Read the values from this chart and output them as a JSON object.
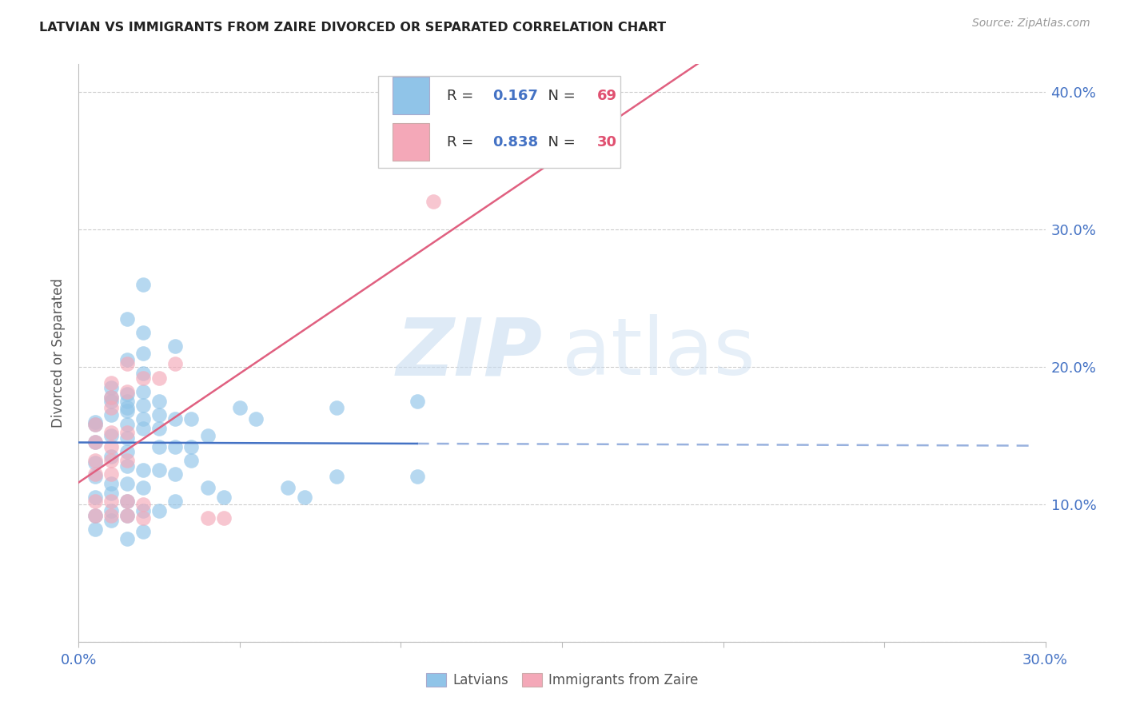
{
  "title": "LATVIAN VS IMMIGRANTS FROM ZAIRE DIVORCED OR SEPARATED CORRELATION CHART",
  "source": "Source: ZipAtlas.com",
  "ylabel": "Divorced or Separated",
  "xlim": [
    0.0,
    0.3
  ],
  "ylim": [
    0.0,
    0.42
  ],
  "latvian_R": 0.167,
  "latvian_N": 69,
  "zaire_R": 0.838,
  "zaire_N": 30,
  "blue_color": "#90C4E8",
  "pink_color": "#F4A8B8",
  "blue_line_color": "#4472C4",
  "pink_line_color": "#E06080",
  "blue_scatter": [
    [
      0.005,
      0.145
    ],
    [
      0.005,
      0.158
    ],
    [
      0.005,
      0.13
    ],
    [
      0.005,
      0.105
    ],
    [
      0.005,
      0.092
    ],
    [
      0.005,
      0.082
    ],
    [
      0.005,
      0.12
    ],
    [
      0.005,
      0.16
    ],
    [
      0.01,
      0.185
    ],
    [
      0.01,
      0.175
    ],
    [
      0.01,
      0.165
    ],
    [
      0.01,
      0.178
    ],
    [
      0.01,
      0.15
    ],
    [
      0.01,
      0.135
    ],
    [
      0.01,
      0.115
    ],
    [
      0.01,
      0.088
    ],
    [
      0.01,
      0.095
    ],
    [
      0.01,
      0.108
    ],
    [
      0.015,
      0.235
    ],
    [
      0.015,
      0.205
    ],
    [
      0.015,
      0.18
    ],
    [
      0.015,
      0.175
    ],
    [
      0.015,
      0.168
    ],
    [
      0.015,
      0.17
    ],
    [
      0.015,
      0.158
    ],
    [
      0.015,
      0.148
    ],
    [
      0.015,
      0.138
    ],
    [
      0.015,
      0.128
    ],
    [
      0.015,
      0.115
    ],
    [
      0.015,
      0.102
    ],
    [
      0.015,
      0.092
    ],
    [
      0.015,
      0.075
    ],
    [
      0.02,
      0.26
    ],
    [
      0.02,
      0.225
    ],
    [
      0.02,
      0.21
    ],
    [
      0.02,
      0.195
    ],
    [
      0.02,
      0.182
    ],
    [
      0.02,
      0.172
    ],
    [
      0.02,
      0.162
    ],
    [
      0.02,
      0.155
    ],
    [
      0.02,
      0.125
    ],
    [
      0.02,
      0.112
    ],
    [
      0.02,
      0.095
    ],
    [
      0.02,
      0.08
    ],
    [
      0.025,
      0.175
    ],
    [
      0.025,
      0.165
    ],
    [
      0.025,
      0.155
    ],
    [
      0.025,
      0.142
    ],
    [
      0.025,
      0.125
    ],
    [
      0.025,
      0.095
    ],
    [
      0.03,
      0.215
    ],
    [
      0.03,
      0.162
    ],
    [
      0.03,
      0.142
    ],
    [
      0.03,
      0.122
    ],
    [
      0.03,
      0.102
    ],
    [
      0.035,
      0.162
    ],
    [
      0.035,
      0.142
    ],
    [
      0.035,
      0.132
    ],
    [
      0.04,
      0.15
    ],
    [
      0.04,
      0.112
    ],
    [
      0.045,
      0.105
    ],
    [
      0.05,
      0.17
    ],
    [
      0.055,
      0.162
    ],
    [
      0.065,
      0.112
    ],
    [
      0.07,
      0.105
    ],
    [
      0.08,
      0.17
    ],
    [
      0.08,
      0.12
    ],
    [
      0.105,
      0.175
    ],
    [
      0.105,
      0.12
    ]
  ],
  "pink_scatter": [
    [
      0.005,
      0.145
    ],
    [
      0.005,
      0.158
    ],
    [
      0.005,
      0.132
    ],
    [
      0.005,
      0.122
    ],
    [
      0.005,
      0.102
    ],
    [
      0.005,
      0.092
    ],
    [
      0.01,
      0.188
    ],
    [
      0.01,
      0.178
    ],
    [
      0.01,
      0.17
    ],
    [
      0.01,
      0.152
    ],
    [
      0.01,
      0.142
    ],
    [
      0.01,
      0.132
    ],
    [
      0.01,
      0.122
    ],
    [
      0.01,
      0.102
    ],
    [
      0.01,
      0.092
    ],
    [
      0.015,
      0.202
    ],
    [
      0.015,
      0.182
    ],
    [
      0.015,
      0.152
    ],
    [
      0.015,
      0.132
    ],
    [
      0.015,
      0.102
    ],
    [
      0.015,
      0.092
    ],
    [
      0.02,
      0.192
    ],
    [
      0.02,
      0.1
    ],
    [
      0.02,
      0.09
    ],
    [
      0.025,
      0.192
    ],
    [
      0.03,
      0.202
    ],
    [
      0.04,
      0.09
    ],
    [
      0.045,
      0.09
    ],
    [
      0.11,
      0.32
    ],
    [
      0.15,
      0.37
    ]
  ],
  "watermark_zip": "ZIP",
  "watermark_atlas": "atlas",
  "background_color": "#FFFFFF",
  "grid_color": "#CCCCCC"
}
